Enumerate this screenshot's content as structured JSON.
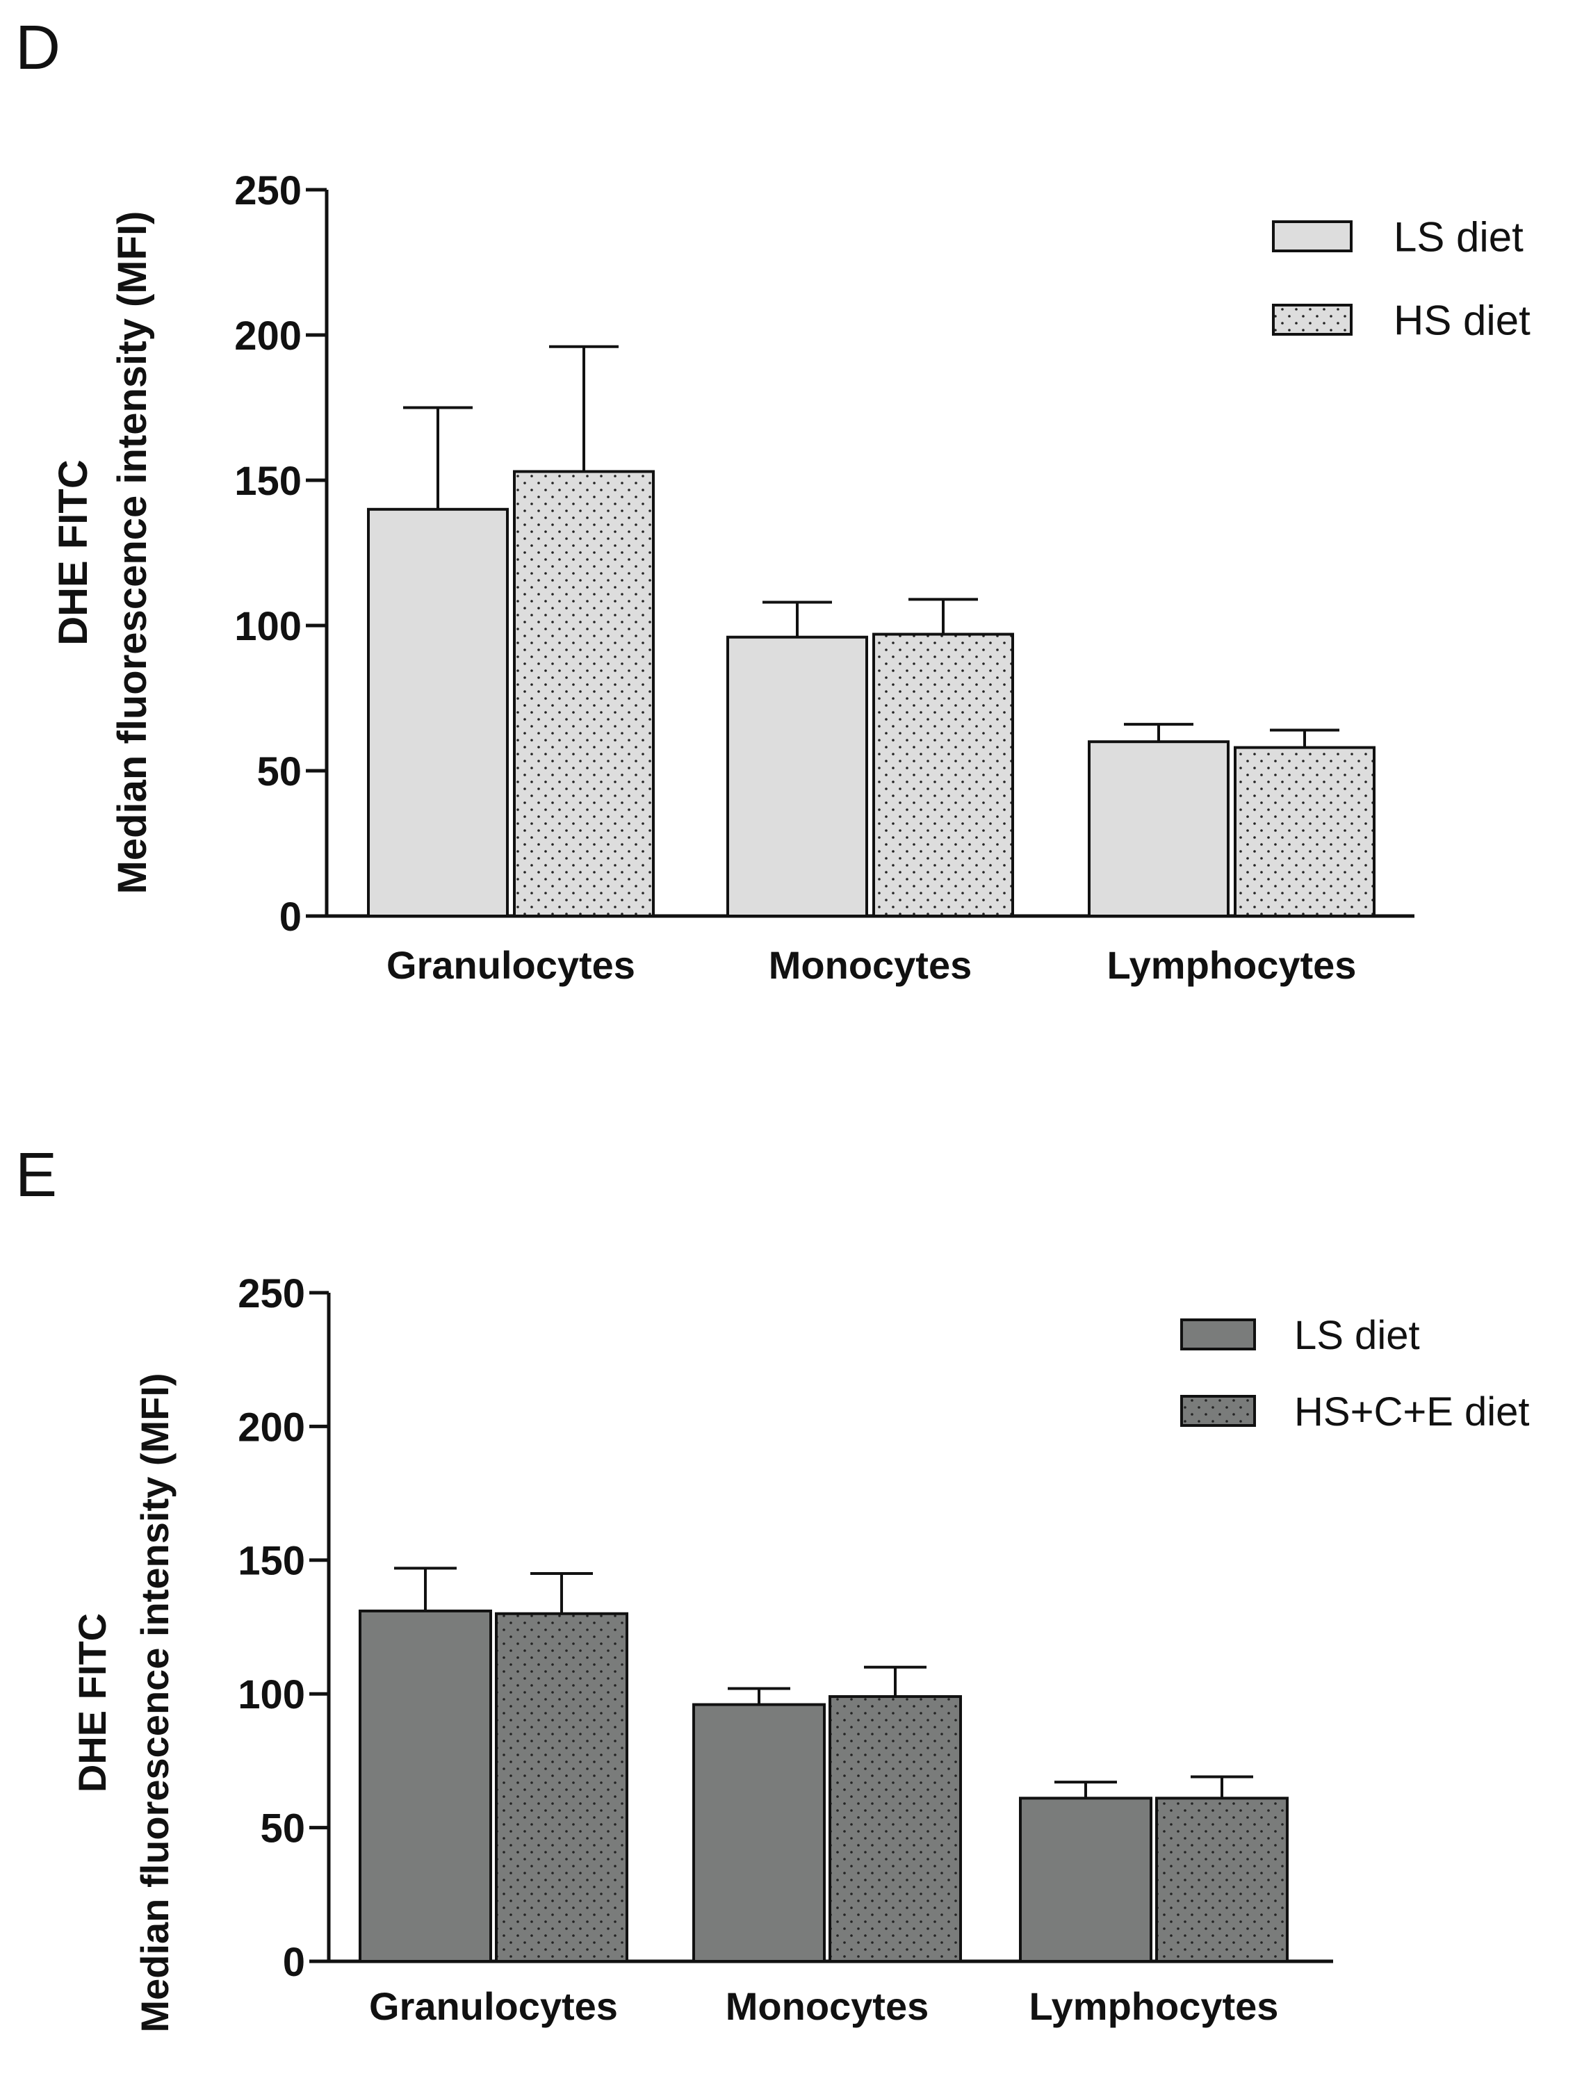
{
  "chart_data": [
    {
      "panel": "D",
      "type": "bar",
      "ylabel_line1": "DHE FITC",
      "ylabel_line2": "Median fluorescence intensity (MFI)",
      "xlabel": "",
      "ylim": [
        0,
        250
      ],
      "yticks": [
        "0",
        "50",
        "100",
        "150",
        "200",
        "250"
      ],
      "categories": [
        "Granulocytes",
        "Monocytes",
        "Lymphocytes"
      ],
      "series": [
        {
          "name": "LS diet",
          "values": [
            140,
            96,
            60
          ],
          "errors": [
            35,
            12,
            6
          ],
          "fill": "#dddddd",
          "pattern": false
        },
        {
          "name": "HS diet",
          "values": [
            153,
            97,
            58
          ],
          "errors": [
            43,
            12,
            6
          ],
          "fill": "#dddddd",
          "pattern": true
        }
      ],
      "legend_position": "top-right"
    },
    {
      "panel": "E",
      "type": "bar",
      "ylabel_line1": "DHE FITC",
      "ylabel_line2": "Median fluorescence intensity (MFI)",
      "xlabel": "",
      "ylim": [
        0,
        250
      ],
      "yticks": [
        "0",
        "50",
        "100",
        "150",
        "200",
        "250"
      ],
      "categories": [
        "Granulocytes",
        "Monocytes",
        "Lymphocytes"
      ],
      "series": [
        {
          "name": "LS diet",
          "values": [
            131,
            96,
            61
          ],
          "errors": [
            16,
            6,
            6
          ],
          "fill": "#7a7c7b",
          "pattern": false
        },
        {
          "name": "HS+C+E diet",
          "values": [
            130,
            99,
            61
          ],
          "errors": [
            15,
            11,
            8
          ],
          "fill": "#7a7c7b",
          "pattern": true
        }
      ],
      "legend_position": "top-right"
    }
  ]
}
